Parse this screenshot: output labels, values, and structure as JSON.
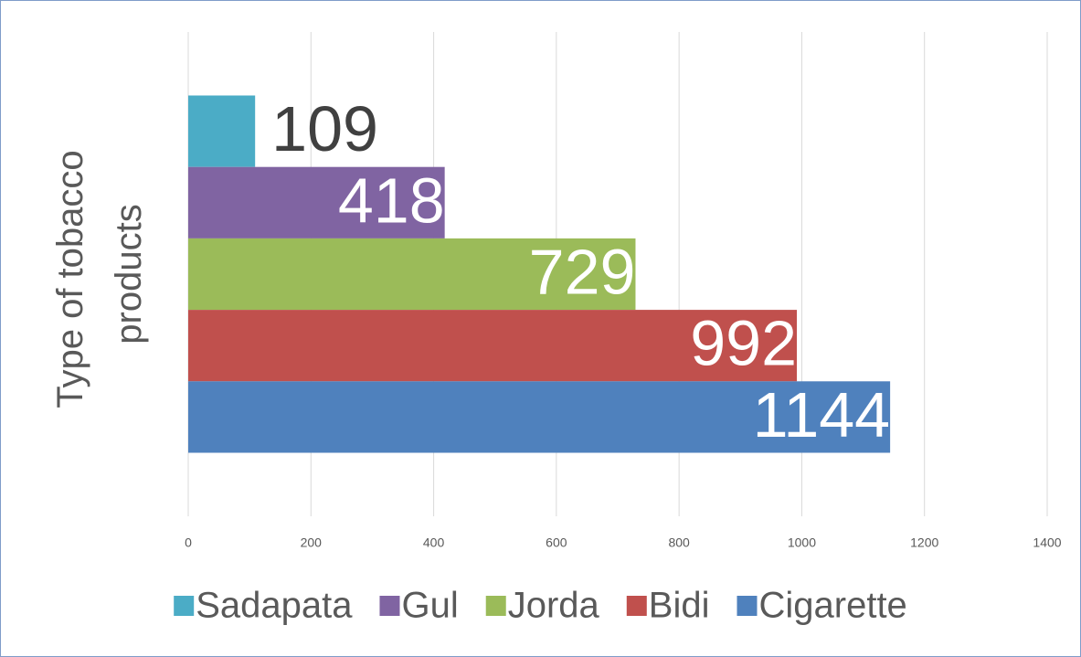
{
  "chart_data": {
    "type": "bar",
    "orientation": "horizontal",
    "y_label": "Type of tobacco products",
    "categories": [
      null
    ],
    "series": [
      {
        "name": "Sadapata",
        "color": "#4bacc6",
        "values": [
          109
        ]
      },
      {
        "name": "Gul",
        "color": "#8064a2",
        "values": [
          418
        ]
      },
      {
        "name": "Jorda",
        "color": "#9bbb59",
        "values": [
          729
        ]
      },
      {
        "name": "Bidi",
        "color": "#c0504d",
        "values": [
          992
        ]
      },
      {
        "name": "Cigarette",
        "color": "#4f81bd",
        "values": [
          1144
        ]
      }
    ],
    "xlim": [
      0,
      1400
    ],
    "xticks": [
      0,
      200,
      400,
      600,
      800,
      1000,
      1200,
      1400
    ],
    "grid": true,
    "legend": "bottom"
  }
}
